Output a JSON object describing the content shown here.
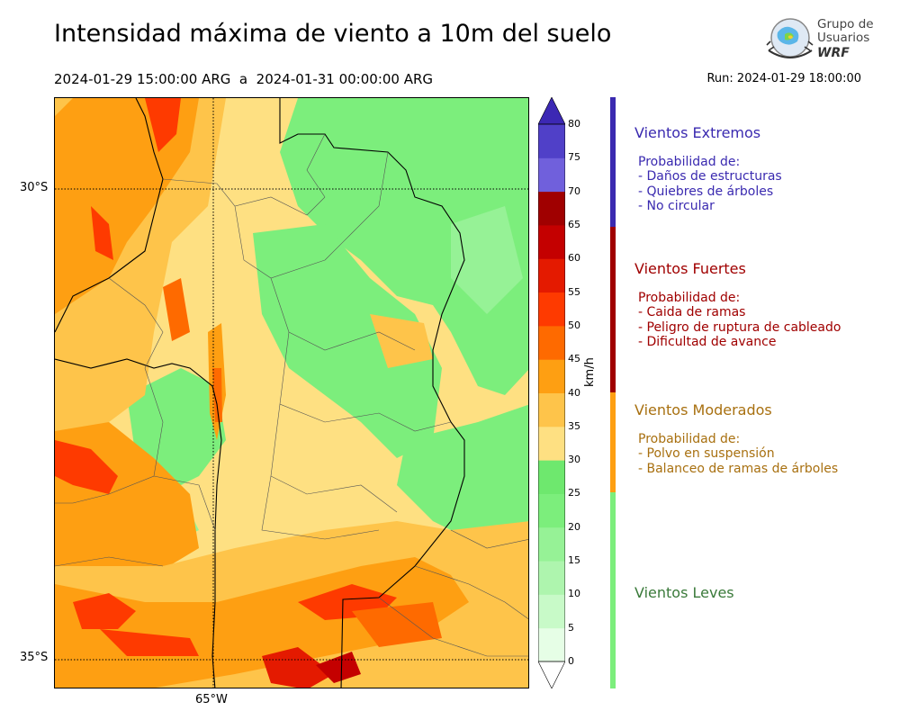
{
  "header": {
    "title": "Intensidad máxima de viento a 10m del suelo",
    "period": "2024-01-29 15:00:00 ARG  a  2024-01-31 00:00:00 ARG",
    "run": "Run: 2024-01-29 18:00:00"
  },
  "logo": {
    "line1": "Grupo de",
    "line2": "Usuarios",
    "line3": "WRF"
  },
  "map": {
    "lat_labels": [
      "30°S",
      "35°S"
    ],
    "lon_labels": [
      "65°W"
    ]
  },
  "colorbar": {
    "unit": "km/h",
    "ticks": [
      "0",
      "5",
      "10",
      "15",
      "20",
      "25",
      "30",
      "35",
      "40",
      "45",
      "50",
      "55",
      "60",
      "65",
      "70",
      "75",
      "80"
    ],
    "colors": [
      "#e6fee6",
      "#c8fac8",
      "#aef5ae",
      "#96f296",
      "#7cee7c",
      "#6ee86e",
      "#fee082",
      "#fec44a",
      "#fe9f12",
      "#fe6a00",
      "#fe3a00",
      "#e41a00",
      "#c40000",
      "#a00000",
      "#7060dc",
      "#5040c8",
      "#3c28b4"
    ],
    "extend_min_color": "#ffffff",
    "extend_max_color": "#3c28b4"
  },
  "legend": {
    "categories": [
      {
        "title": "Vientos Extremos",
        "color": "#3a2ab0",
        "bar_color": "#3a2ab0",
        "lines": [
          "Probabilidad de:",
          "- Daños de estructuras",
          "- Quiebres de árboles",
          "- No circular"
        ]
      },
      {
        "title": "Vientos Fuertes",
        "color": "#a00000",
        "bar_color": "#a00000",
        "lines": [
          "Probabilidad de:",
          "- Caida de ramas",
          "- Peligro de ruptura de cableado",
          "- Dificultad de avance"
        ]
      },
      {
        "title": "Vientos Moderados",
        "color": "#a87010",
        "bar_color": "#fe9f12",
        "lines": [
          "Probabilidad de:",
          "- Polvo en suspensión",
          "- Balanceo de ramas de árboles"
        ]
      },
      {
        "title": "Vientos Leves",
        "color": "#3a7a3a",
        "bar_color": "#7cee7c",
        "lines": []
      }
    ]
  }
}
